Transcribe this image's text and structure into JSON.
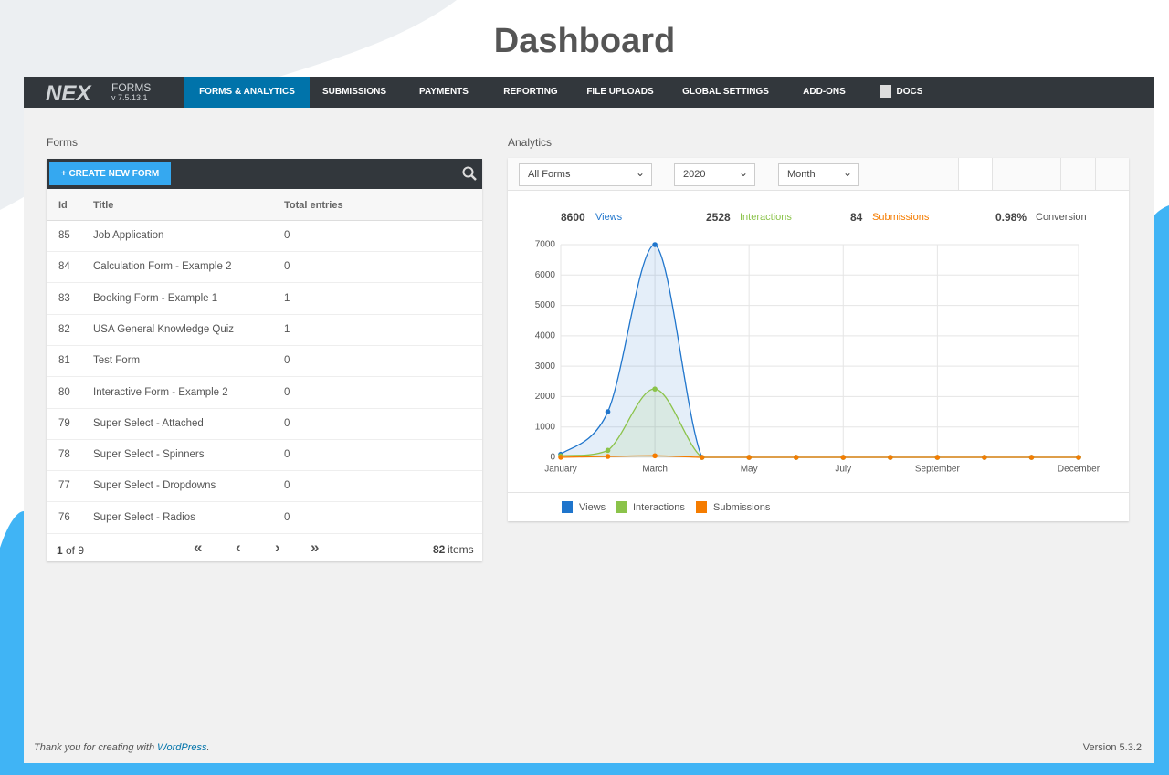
{
  "page_title": "Dashboard",
  "nav": {
    "logo": "NEX",
    "logo_sub": "FORMS",
    "version": "v 7.5.13.1",
    "items": [
      "FORMS & ANALYTICS",
      "SUBMISSIONS",
      "PAYMENTS",
      "REPORTING",
      "FILE UPLOADS",
      "GLOBAL SETTINGS",
      "ADD-ONS",
      "DOCS"
    ]
  },
  "forms": {
    "heading": "Forms",
    "button": "CREATE NEW FORM",
    "columns": [
      "Id",
      "Title",
      "Total entries"
    ],
    "rows": [
      [
        "85",
        "Job Application",
        "0"
      ],
      [
        "84",
        "Calculation Form - Example 2",
        "0"
      ],
      [
        "83",
        "Booking Form - Example 1",
        "1"
      ],
      [
        "82",
        "USA General Knowledge Quiz",
        "1"
      ],
      [
        "81",
        "Test Form",
        "0"
      ],
      [
        "80",
        "Interactive Form - Example 2",
        "0"
      ],
      [
        "79",
        "Super Select - Attached",
        "0"
      ],
      [
        "78",
        "Super Select - Spinners",
        "0"
      ],
      [
        "77",
        "Super Select - Dropdowns",
        "0"
      ],
      [
        "76",
        "Super Select - Radios",
        "0"
      ]
    ],
    "pager": {
      "page": "1",
      "of": "of 9",
      "count": "82",
      "unit": "items"
    }
  },
  "analytics": {
    "heading": "Analytics",
    "selects": [
      "All Forms",
      "2020",
      "Month"
    ],
    "stats": [
      {
        "value": "8600",
        "label": "Views"
      },
      {
        "value": "2528",
        "label": "Interactions"
      },
      {
        "value": "84",
        "label": "Submissions"
      },
      {
        "value": "0.98%",
        "label": "Conversion"
      }
    ]
  },
  "chart_data": {
    "type": "line",
    "categories": [
      "January",
      null,
      "March",
      null,
      "May",
      null,
      "July",
      null,
      "September",
      null,
      null,
      "December"
    ],
    "series": [
      {
        "name": "Views",
        "color": "#1f75cc",
        "values": [
          100,
          1500,
          7000,
          0,
          0,
          0,
          0,
          0,
          0,
          0,
          0,
          0
        ]
      },
      {
        "name": "Interactions",
        "color": "#8bc34a",
        "values": [
          50,
          230,
          2248,
          0,
          0,
          0,
          0,
          0,
          0,
          0,
          0,
          0
        ]
      },
      {
        "name": "Submissions",
        "color": "#f57c00",
        "values": [
          2,
          30,
          52,
          0,
          0,
          0,
          0,
          0,
          0,
          0,
          0,
          0
        ]
      }
    ],
    "ylim": [
      0,
      7000
    ],
    "yticks": [
      0,
      1000,
      2000,
      3000,
      4000,
      5000,
      6000,
      7000
    ],
    "grid": true,
    "legend": "bottom"
  },
  "footer": {
    "thanks": "Thank you for creating with",
    "link": "WordPress",
    "version": "Version 5.3.2"
  }
}
